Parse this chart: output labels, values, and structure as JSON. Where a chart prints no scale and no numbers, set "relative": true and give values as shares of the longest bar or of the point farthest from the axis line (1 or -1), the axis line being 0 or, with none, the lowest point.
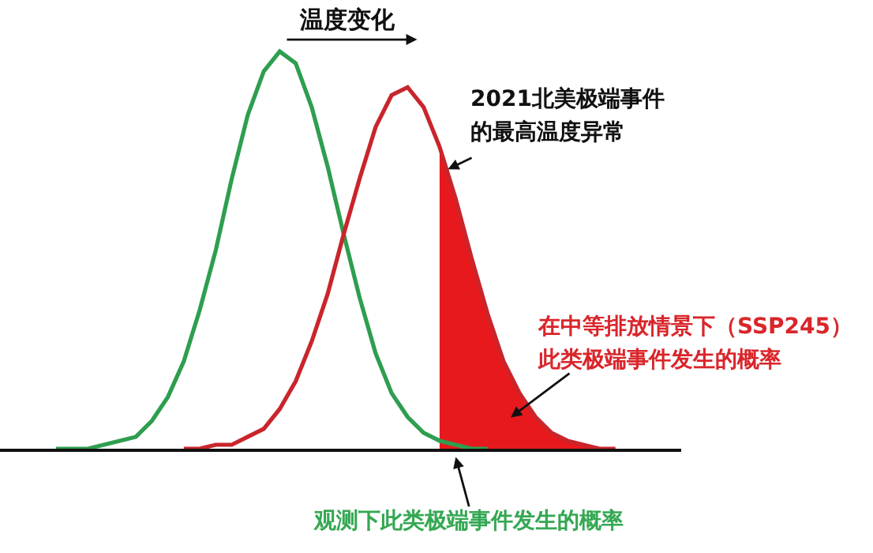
{
  "chart_data": {
    "type": "line",
    "title": "温度变化",
    "relative": true,
    "marker": "none",
    "line_style": "solid",
    "categories": [
      null,
      null,
      null,
      null,
      null,
      null,
      null,
      null,
      null,
      null,
      null,
      null,
      null,
      null,
      null,
      null,
      null,
      null,
      null,
      null,
      null,
      null,
      null,
      null,
      null,
      null,
      null,
      null,
      null,
      null,
      null,
      null,
      null,
      null,
      null,
      null,
      null
    ],
    "series": [
      {
        "type": "area",
        "color": "#e8191c",
        "values": [
          null,
          null,
          null,
          null,
          null,
          null,
          null,
          null,
          null,
          null,
          null,
          null,
          null,
          null,
          null,
          null,
          null,
          null,
          null,
          null,
          null,
          null,
          null,
          null,
          0.76,
          0.63,
          0.48,
          0.34,
          0.22,
          0.14,
          0.08,
          0.04,
          0.02,
          0.01,
          0,
          0,
          null
        ]
      },
      {
        "color": "#2e9e4f",
        "values": [
          0,
          0,
          0,
          0.01,
          0.02,
          0.03,
          0.07,
          0.13,
          0.22,
          0.35,
          0.5,
          0.68,
          0.84,
          0.95,
          1,
          0.97,
          0.86,
          0.71,
          0.54,
          0.38,
          0.24,
          0.14,
          0.08,
          0.04,
          0.02,
          0.01,
          0,
          0,
          null,
          null,
          null,
          null,
          null,
          null,
          null,
          null,
          null
        ]
      },
      {
        "color": "#c9252c",
        "values": [
          null,
          null,
          null,
          null,
          null,
          null,
          null,
          null,
          0,
          0,
          0.01,
          0.01,
          0.03,
          0.05,
          0.1,
          0.17,
          0.27,
          0.39,
          0.54,
          0.68,
          0.81,
          0.89,
          0.91,
          0.86,
          0.76,
          0.63,
          0.48,
          0.34,
          0.22,
          0.14,
          0.08,
          0.04,
          0.02,
          0.01,
          0,
          0,
          null
        ]
      }
    ],
    "annotations": [
      "2021北美极端事件",
      "的最高温度异常",
      "在中等排放情景下（SSP245）",
      "此类极端事件发生的概率",
      "观测下此类极端事件发生的概率"
    ]
  }
}
